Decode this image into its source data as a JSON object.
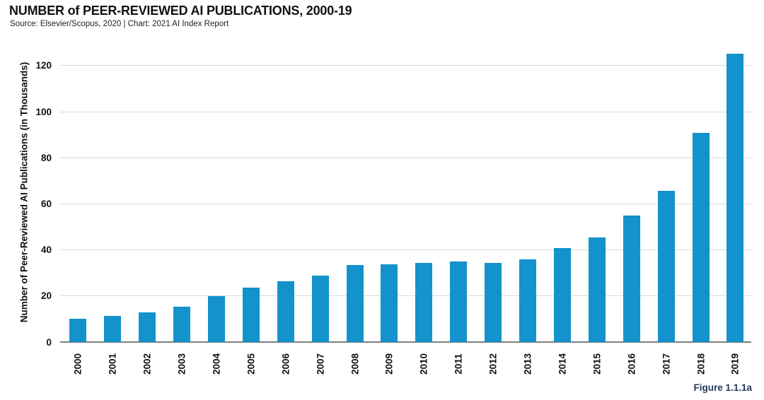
{
  "header": {
    "title": "NUMBER of PEER-REVIEWED AI PUBLICATIONS, 2000-19",
    "source": "Source: Elsevier/Scopus, 2020 | Chart: 2021 AI Index Report"
  },
  "figure_label": "Figure 1.1.1a",
  "chart_data": {
    "type": "bar",
    "title": "NUMBER of PEER-REVIEWED AI PUBLICATIONS, 2000-19",
    "categories": [
      "2000",
      "2001",
      "2002",
      "2003",
      "2004",
      "2005",
      "2006",
      "2007",
      "2008",
      "2009",
      "2010",
      "2011",
      "2012",
      "2013",
      "2014",
      "2015",
      "2016",
      "2017",
      "2018",
      "2019"
    ],
    "values": [
      10.2,
      11.4,
      13.0,
      15.3,
      20.0,
      23.7,
      26.4,
      28.9,
      33.4,
      33.6,
      34.5,
      34.9,
      34.4,
      35.8,
      40.8,
      45.4,
      55.0,
      65.6,
      90.9,
      125.2
    ],
    "xlabel": "",
    "ylabel": "Number of Peer-Reviewed AI Publications (in Thousands)",
    "ylim": [
      0,
      130
    ],
    "yticks": [
      0,
      20,
      40,
      60,
      80,
      100,
      120
    ],
    "grid": "horizontal",
    "legend": "none",
    "bar_color": "#1492cb"
  },
  "colors": {
    "bar": "#1492cb",
    "gridline": "#d9d9d9",
    "axis_line": "#7f7f7f",
    "figure_label": "#1e3a56",
    "text": "#111111"
  }
}
